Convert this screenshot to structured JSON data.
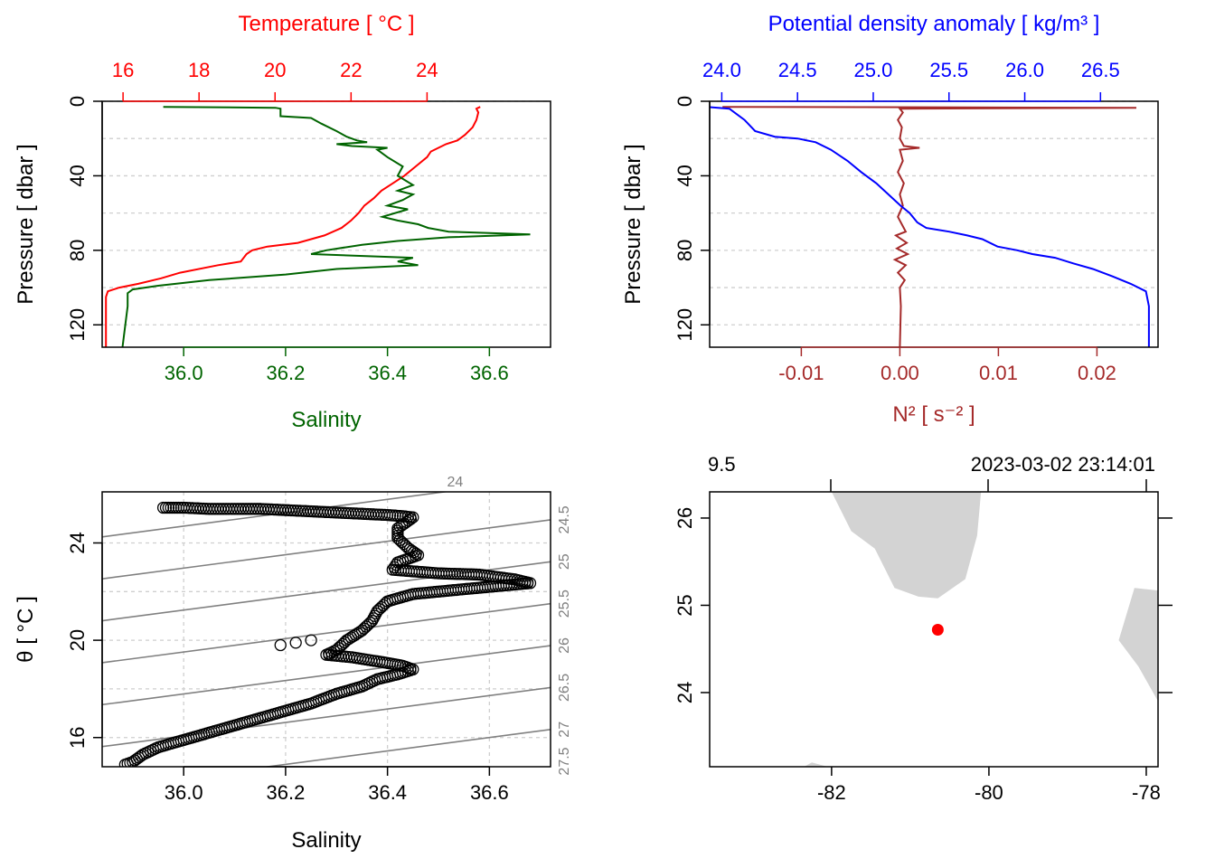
{
  "colors": {
    "temperature": "#ff0000",
    "salinity": "#006400",
    "density": "#0000ff",
    "n2": "#a52a2a",
    "land": "#d3d3d3",
    "isopycnal": "#808080",
    "station": "#ff0000"
  },
  "chart_data": [
    {
      "id": "profile-ts",
      "type": "line",
      "title": "",
      "top_axis": {
        "label": "Temperature [ °C ]",
        "ticks": [
          16,
          18,
          20,
          22,
          24
        ],
        "tick_labels": [
          "16",
          "18",
          "20",
          "22",
          "24"
        ],
        "range": [
          15.45,
          27.25
        ]
      },
      "bottom_axis": {
        "label": "Salinity",
        "ticks": [
          36.0,
          36.2,
          36.4,
          36.6
        ],
        "tick_labels": [
          "36.0",
          "36.2",
          "36.4",
          "36.6"
        ],
        "range": [
          35.84,
          36.72
        ]
      },
      "y_axis": {
        "label": "Pressure [ dbar ]",
        "ticks": [
          0,
          40,
          80,
          120
        ],
        "tick_labels": [
          "0",
          "40",
          "80",
          "120"
        ],
        "grid": [
          0,
          20,
          40,
          60,
          80,
          100,
          120
        ],
        "range": [
          132,
          0
        ]
      },
      "series": [
        {
          "name": "Temperature",
          "axis": "top",
          "points": [
            [
              25.4,
              3
            ],
            [
              25.3,
              4
            ],
            [
              25.35,
              6
            ],
            [
              25.3,
              10
            ],
            [
              25.2,
              14
            ],
            [
              25.0,
              18
            ],
            [
              24.8,
              21
            ],
            [
              24.5,
              23
            ],
            [
              24.3,
              25
            ],
            [
              24.1,
              27
            ],
            [
              24.0,
              30
            ],
            [
              23.7,
              35
            ],
            [
              23.4,
              40
            ],
            [
              23.1,
              44
            ],
            [
              22.8,
              48
            ],
            [
              22.6,
              52
            ],
            [
              22.35,
              56
            ],
            [
              22.2,
              60
            ],
            [
              22.0,
              64
            ],
            [
              21.75,
              68
            ],
            [
              21.3,
              72
            ],
            [
              20.6,
              76
            ],
            [
              19.8,
              78
            ],
            [
              19.4,
              80
            ],
            [
              19.25,
              82
            ],
            [
              19.1,
              86
            ],
            [
              18.5,
              88
            ],
            [
              17.5,
              92
            ],
            [
              17.0,
              95
            ],
            [
              16.4,
              98
            ],
            [
              15.9,
              100
            ],
            [
              15.6,
              102
            ],
            [
              15.55,
              105
            ],
            [
              15.55,
              115
            ],
            [
              15.55,
              132
            ]
          ]
        },
        {
          "name": "Salinity",
          "axis": "bottom",
          "points": [
            [
              35.96,
              3
            ],
            [
              36.18,
              3.5
            ],
            [
              36.19,
              4
            ],
            [
              36.19,
              8
            ],
            [
              36.25,
              9
            ],
            [
              36.27,
              12
            ],
            [
              36.3,
              16
            ],
            [
              36.32,
              19
            ],
            [
              36.34,
              21
            ],
            [
              36.36,
              22
            ],
            [
              36.3,
              23
            ],
            [
              36.33,
              24
            ],
            [
              36.4,
              25
            ],
            [
              36.38,
              26
            ],
            [
              36.4,
              30
            ],
            [
              36.43,
              35
            ],
            [
              36.42,
              40
            ],
            [
              36.45,
              45
            ],
            [
              36.42,
              48
            ],
            [
              36.45,
              50
            ],
            [
              36.43,
              53
            ],
            [
              36.4,
              56
            ],
            [
              36.44,
              58
            ],
            [
              36.39,
              62
            ],
            [
              36.42,
              64
            ],
            [
              36.46,
              66
            ],
            [
              36.48,
              68
            ],
            [
              36.52,
              70
            ],
            [
              36.68,
              71.5
            ],
            [
              36.52,
              73
            ],
            [
              36.42,
              75
            ],
            [
              36.35,
              77
            ],
            [
              36.28,
              80
            ],
            [
              36.25,
              82
            ],
            [
              36.45,
              84
            ],
            [
              36.42,
              86
            ],
            [
              36.46,
              88
            ],
            [
              36.3,
              90
            ],
            [
              36.2,
              93
            ],
            [
              36.05,
              96
            ],
            [
              35.95,
              99
            ],
            [
              35.9,
              101
            ],
            [
              35.89,
              103
            ],
            [
              35.89,
              110
            ],
            [
              35.88,
              132
            ]
          ]
        }
      ]
    },
    {
      "id": "profile-density",
      "type": "line",
      "title": "",
      "top_axis": {
        "label": "Potential density anomaly [ kg/m³ ]",
        "ticks": [
          24.0,
          24.5,
          25.0,
          25.5,
          26.0,
          26.5
        ],
        "tick_labels": [
          "24.0",
          "24.5",
          "25.0",
          "25.5",
          "26.0",
          "26.5"
        ],
        "range": [
          23.92,
          26.88
        ]
      },
      "bottom_axis": {
        "label": "N² [ s⁻² ]",
        "ticks": [
          -0.01,
          0.0,
          0.01,
          0.02
        ],
        "tick_labels": [
          "-0.01",
          "0.00",
          "0.01",
          "0.02"
        ],
        "range": [
          -0.0193,
          0.0262
        ]
      },
      "y_axis": {
        "label": "Pressure [ dbar ]",
        "ticks": [
          0,
          40,
          80,
          120
        ],
        "tick_labels": [
          "0",
          "40",
          "80",
          "120"
        ],
        "grid": [
          0,
          20,
          40,
          60,
          80,
          100,
          120
        ],
        "range": [
          132,
          0
        ]
      },
      "series": [
        {
          "name": "Potential density anomaly",
          "axis": "top",
          "points": [
            [
              23.9,
              3
            ],
            [
              24.05,
              4
            ],
            [
              24.15,
              10
            ],
            [
              24.22,
              16
            ],
            [
              24.35,
              19
            ],
            [
              24.5,
              20
            ],
            [
              24.62,
              22
            ],
            [
              24.72,
              26
            ],
            [
              24.83,
              32
            ],
            [
              24.92,
              38
            ],
            [
              25.02,
              44
            ],
            [
              25.1,
              50
            ],
            [
              25.18,
              56
            ],
            [
              25.24,
              60
            ],
            [
              25.29,
              65
            ],
            [
              25.35,
              68
            ],
            [
              25.5,
              70
            ],
            [
              25.62,
              72
            ],
            [
              25.72,
              74
            ],
            [
              25.82,
              78
            ],
            [
              25.95,
              80
            ],
            [
              26.05,
              82
            ],
            [
              26.2,
              84
            ],
            [
              26.32,
              87
            ],
            [
              26.45,
              90
            ],
            [
              26.58,
              94
            ],
            [
              26.7,
              98
            ],
            [
              26.8,
              102
            ],
            [
              26.82,
              110
            ],
            [
              26.82,
              132
            ]
          ]
        },
        {
          "name": "N2",
          "axis": "bottom",
          "points": [
            [
              -0.018,
              3
            ],
            [
              0.024,
              3.5
            ],
            [
              0.0,
              4
            ],
            [
              0.0003,
              6
            ],
            [
              -0.0002,
              10
            ],
            [
              0.0002,
              14
            ],
            [
              0.0,
              20
            ],
            [
              0.0004,
              24
            ],
            [
              0.002,
              25
            ],
            [
              0.0,
              26
            ],
            [
              0.0003,
              32
            ],
            [
              -0.0002,
              38
            ],
            [
              0.0004,
              44
            ],
            [
              0.0,
              50
            ],
            [
              0.0003,
              56
            ],
            [
              -0.0002,
              62
            ],
            [
              0.0006,
              70
            ],
            [
              -0.0004,
              72
            ],
            [
              0.0007,
              76
            ],
            [
              -0.0003,
              79
            ],
            [
              0.0008,
              82
            ],
            [
              -0.0005,
              85
            ],
            [
              0.0006,
              88
            ],
            [
              -0.0002,
              92
            ],
            [
              0.0005,
              96
            ],
            [
              0.0,
              100
            ],
            [
              0.0001,
              110
            ],
            [
              0.0,
              132
            ]
          ]
        }
      ]
    },
    {
      "id": "ts-diagram",
      "type": "scatter",
      "title": "",
      "xlabel": "Salinity",
      "ylabel": "θ [ °C ]",
      "x_axis": {
        "ticks": [
          36.0,
          36.2,
          36.4,
          36.6
        ],
        "tick_labels": [
          "36.0",
          "36.2",
          "36.4",
          "36.6"
        ],
        "range": [
          35.84,
          36.72
        ]
      },
      "y_axis": {
        "ticks": [
          16,
          20,
          24
        ],
        "tick_labels": [
          "16",
          "20",
          "24"
        ],
        "grid": [
          16,
          18,
          20,
          22,
          24
        ],
        "range": [
          14.8,
          26.1
        ]
      },
      "isopycnals": [
        {
          "sigma": 24.0,
          "label": "24"
        },
        {
          "sigma": 24.5,
          "label": "24.5"
        },
        {
          "sigma": 25.0,
          "label": "25"
        },
        {
          "sigma": 25.5,
          "label": "25.5"
        },
        {
          "sigma": 26.0,
          "label": "26"
        },
        {
          "sigma": 26.5,
          "label": "26.5"
        },
        {
          "sigma": 27.0,
          "label": "27"
        },
        {
          "sigma": 27.5,
          "label": "27.5"
        }
      ],
      "points": [
        [
          35.96,
          25.45
        ],
        [
          36.0,
          25.45
        ],
        [
          36.05,
          25.4
        ],
        [
          36.1,
          25.4
        ],
        [
          36.15,
          25.4
        ],
        [
          36.2,
          25.35
        ],
        [
          36.25,
          25.3
        ],
        [
          36.3,
          25.25
        ],
        [
          36.35,
          25.2
        ],
        [
          36.4,
          25.15
        ],
        [
          36.43,
          25.1
        ],
        [
          36.45,
          25.05
        ],
        [
          36.42,
          24.6
        ],
        [
          36.42,
          24.2
        ],
        [
          36.44,
          23.8
        ],
        [
          36.46,
          23.5
        ],
        [
          36.42,
          23.2
        ],
        [
          36.41,
          22.9
        ],
        [
          36.5,
          22.75
        ],
        [
          36.58,
          22.7
        ],
        [
          36.65,
          22.5
        ],
        [
          36.68,
          22.35
        ],
        [
          36.55,
          22.1
        ],
        [
          36.45,
          21.9
        ],
        [
          36.4,
          21.6
        ],
        [
          36.38,
          21.2
        ],
        [
          36.37,
          20.8
        ],
        [
          36.35,
          20.4
        ],
        [
          36.32,
          20.0
        ],
        [
          36.3,
          19.6
        ],
        [
          36.28,
          19.4
        ],
        [
          36.33,
          19.3
        ],
        [
          36.39,
          19.1
        ],
        [
          36.43,
          18.95
        ],
        [
          36.45,
          18.8
        ],
        [
          36.42,
          18.6
        ],
        [
          36.38,
          18.4
        ],
        [
          36.35,
          18.1
        ],
        [
          36.3,
          17.8
        ],
        [
          36.25,
          17.4
        ],
        [
          36.2,
          17.1
        ],
        [
          36.15,
          16.8
        ],
        [
          36.1,
          16.5
        ],
        [
          36.05,
          16.2
        ],
        [
          36.0,
          15.9
        ],
        [
          35.95,
          15.6
        ],
        [
          35.92,
          15.3
        ],
        [
          35.9,
          15.0
        ],
        [
          35.88,
          14.85
        ],
        [
          36.19,
          19.8
        ],
        [
          36.22,
          19.9
        ],
        [
          36.25,
          20.0
        ]
      ]
    },
    {
      "id": "station-map",
      "type": "scatter",
      "title": "",
      "x_axis": {
        "ticks": [
          -82,
          -80,
          -78
        ],
        "tick_labels": [
          "-82",
          "-80",
          "-78"
        ],
        "range": [
          -83.55,
          -77.85
        ]
      },
      "y_axis": {
        "ticks": [
          24,
          25,
          26
        ],
        "tick_labels": [
          "24",
          "25",
          "26"
        ],
        "range": [
          23.15,
          26.3
        ]
      },
      "top_left_text": "9.5",
      "top_right_text": "2023-03-02 23:14:01",
      "station": {
        "lon": -80.65,
        "lat": 24.72
      },
      "land": [
        [
          [
            -82.0,
            26.3
          ],
          [
            -81.75,
            25.85
          ],
          [
            -81.45,
            25.65
          ],
          [
            -81.2,
            25.2
          ],
          [
            -80.9,
            25.1
          ],
          [
            -80.65,
            25.08
          ],
          [
            -80.3,
            25.3
          ],
          [
            -80.15,
            25.8
          ],
          [
            -80.1,
            26.3
          ]
        ],
        [
          [
            -77.85,
            25.17
          ],
          [
            -78.15,
            25.2
          ],
          [
            -78.35,
            24.6
          ],
          [
            -78.1,
            24.3
          ],
          [
            -77.85,
            23.9
          ]
        ],
        [
          [
            -82.35,
            23.15
          ],
          [
            -82.25,
            23.2
          ],
          [
            -82.05,
            23.15
          ]
        ]
      ]
    }
  ]
}
